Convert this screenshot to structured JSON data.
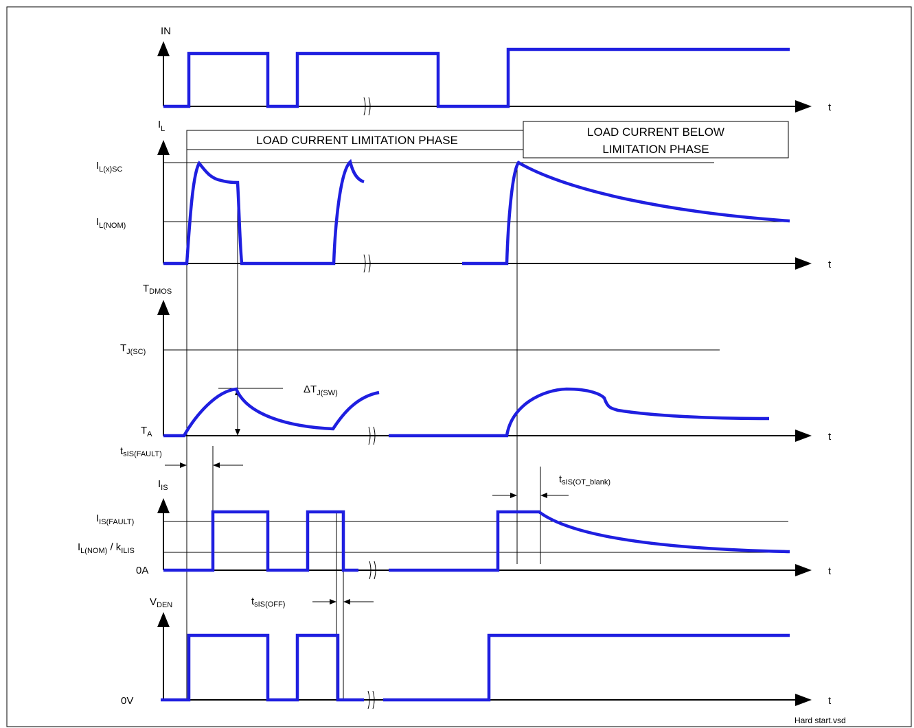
{
  "signals": {
    "in": "IN",
    "il": {
      "main": "I",
      "sub": "L"
    },
    "tdmos": {
      "main": "T",
      "sub": "DMOS"
    },
    "iis": {
      "main": "I",
      "sub": "IS"
    },
    "vden": {
      "main": "V",
      "sub": "DEN"
    }
  },
  "time_label": "t",
  "levels": {
    "il_sc": {
      "main": "I",
      "sub": "L(x)SC"
    },
    "il_nom": {
      "main": "I",
      "sub": "L(NOM)"
    },
    "tj_sc": {
      "main": "T",
      "sub": "J(SC)"
    },
    "ta": {
      "main": "T",
      "sub": "A"
    },
    "iis_fault": {
      "main": "I",
      "sub": "IS(FAULT)"
    },
    "il_nom_k": {
      "main1": "I",
      "sub1": "L(NOM)",
      "mid": " / k",
      "sub2": "ILIS"
    },
    "zero_a": "0A",
    "zero_v": "0V"
  },
  "timings": {
    "delta_tj": {
      "main": "ΔT",
      "sub": "J(SW)"
    },
    "t_fault": {
      "main": "t",
      "sub": "sIS(FAULT)"
    },
    "t_ot_blank": {
      "main": "t",
      "sub": "sIS(OT_blank)"
    },
    "t_off": {
      "main": "t",
      "sub": "sIS(OFF)"
    }
  },
  "phases": {
    "limitation": "LOAD CURRENT LIMITATION PHASE",
    "below_line1": "LOAD CURRENT BELOW",
    "below_line2": "LIMITATION PHASE"
  },
  "footer": "Hard start.vsd",
  "colors": {
    "waveform": "#1f1fe0",
    "lines": "#000000",
    "background": "#ffffff"
  }
}
